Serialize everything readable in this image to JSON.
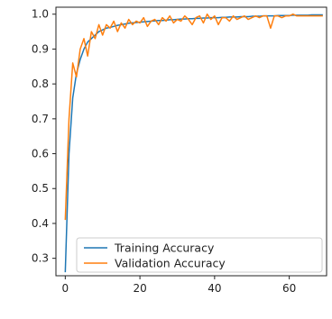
{
  "chart_data": {
    "type": "line",
    "title": "",
    "xlabel": "",
    "ylabel": "",
    "xlim": [
      -2.5,
      70
    ],
    "ylim": [
      0.25,
      1.02
    ],
    "x_ticks": [
      0,
      20,
      40,
      60
    ],
    "y_ticks": [
      0.3,
      0.4,
      0.5,
      0.6,
      0.7,
      0.8,
      0.9,
      1.0
    ],
    "y_tick_labels": [
      "0.3",
      "0.4",
      "0.5",
      "0.6",
      "0.7",
      "0.8",
      "0.9",
      "1.0"
    ],
    "grid": false,
    "legend_position": "bottom-right",
    "series": [
      {
        "name": "Training Accuracy",
        "color": "#1f77b4",
        "x": [
          0,
          1,
          2,
          3,
          4,
          5,
          6,
          7,
          8,
          9,
          10,
          11,
          12,
          13,
          14,
          15,
          16,
          17,
          18,
          19,
          20,
          21,
          22,
          23,
          24,
          25,
          26,
          27,
          28,
          29,
          30,
          31,
          32,
          33,
          34,
          35,
          36,
          37,
          38,
          39,
          40,
          41,
          42,
          43,
          44,
          45,
          46,
          47,
          48,
          49,
          50,
          51,
          52,
          53,
          54,
          55,
          56,
          57,
          58,
          59,
          60,
          61,
          62,
          63,
          64,
          65,
          66,
          67,
          68,
          69
        ],
        "values": [
          0.26,
          0.6,
          0.76,
          0.83,
          0.87,
          0.9,
          0.92,
          0.93,
          0.94,
          0.95,
          0.955,
          0.96,
          0.962,
          0.965,
          0.968,
          0.97,
          0.972,
          0.974,
          0.975,
          0.976,
          0.977,
          0.978,
          0.979,
          0.98,
          0.981,
          0.982,
          0.982,
          0.983,
          0.984,
          0.984,
          0.985,
          0.986,
          0.986,
          0.987,
          0.987,
          0.988,
          0.988,
          0.989,
          0.989,
          0.99,
          0.99,
          0.99,
          0.991,
          0.991,
          0.992,
          0.992,
          0.992,
          0.993,
          0.993,
          0.993,
          0.994,
          0.994,
          0.994,
          0.995,
          0.995,
          0.995,
          0.995,
          0.996,
          0.996,
          0.996,
          0.996,
          0.997,
          0.997,
          0.997,
          0.997,
          0.997,
          0.998,
          0.998,
          0.998,
          0.998
        ]
      },
      {
        "name": "Validation Accuracy",
        "color": "#ff7f0e",
        "x": [
          0,
          1,
          2,
          3,
          4,
          5,
          6,
          7,
          8,
          9,
          10,
          11,
          12,
          13,
          14,
          15,
          16,
          17,
          18,
          19,
          20,
          21,
          22,
          23,
          24,
          25,
          26,
          27,
          28,
          29,
          30,
          31,
          32,
          33,
          34,
          35,
          36,
          37,
          38,
          39,
          40,
          41,
          42,
          43,
          44,
          45,
          46,
          47,
          48,
          49,
          50,
          51,
          52,
          53,
          54,
          55,
          56,
          57,
          58,
          59,
          60,
          61,
          62,
          63,
          64,
          65,
          66,
          67,
          68,
          69
        ],
        "values": [
          0.41,
          0.7,
          0.86,
          0.82,
          0.9,
          0.93,
          0.88,
          0.95,
          0.93,
          0.97,
          0.94,
          0.97,
          0.96,
          0.98,
          0.95,
          0.975,
          0.96,
          0.985,
          0.97,
          0.98,
          0.975,
          0.99,
          0.965,
          0.98,
          0.985,
          0.97,
          0.99,
          0.98,
          0.995,
          0.975,
          0.985,
          0.98,
          0.995,
          0.985,
          0.97,
          0.99,
          0.995,
          0.975,
          1.0,
          0.985,
          0.995,
          0.97,
          0.99,
          0.99,
          0.98,
          0.995,
          0.985,
          0.99,
          0.995,
          0.985,
          0.99,
          0.995,
          0.99,
          0.995,
          0.995,
          0.96,
          0.995,
          0.995,
          0.99,
          0.995,
          0.995,
          1.0,
          0.995,
          0.995,
          0.995,
          0.995,
          0.995,
          0.995,
          0.995,
          0.995
        ]
      }
    ]
  }
}
